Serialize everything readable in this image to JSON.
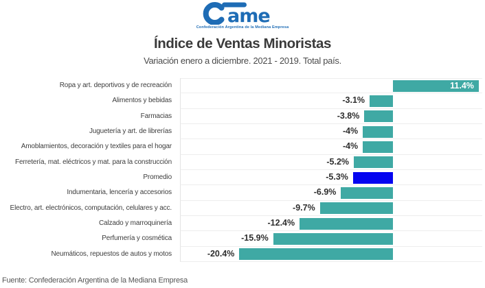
{
  "logo": {
    "name": "Came",
    "tagline": "Confederación Argentina de la Mediana Empresa",
    "color": "#1e6cb5"
  },
  "header": {
    "title": "Índice de Ventas Minoristas",
    "subtitle": "Variación enero a diciembre. 2021 - 2019. Total país."
  },
  "footer": {
    "source": "Fuente: Confederación Argentina de la Mediana Empresa"
  },
  "chart_data": {
    "type": "bar",
    "orientation": "horizontal",
    "title": "Índice de Ventas Minoristas",
    "subtitle": "Variación enero a diciembre. 2021 - 2019. Total país.",
    "categories": [
      "Ropa y art. deportivos y de recreación",
      "Alimentos y bebidas",
      "Farmacias",
      "Juguetería y art. de librerías",
      "Amoblamientos, decoración y textiles para el hogar",
      "Ferretería, mat. eléctricos y mat. para la construcción",
      "Promedio",
      "Indumentaria, lencería y accesorios",
      "Electro, art. electrónicos, computación, celulares y acc.",
      "Calzado y marroquinería",
      "Perfumería y cosmética",
      "Neumáticos, repuestos de autos y motos"
    ],
    "values": [
      11.4,
      -3.1,
      -3.8,
      -4,
      -4,
      -5.2,
      -5.3,
      -6.9,
      -9.7,
      -12.4,
      -15.9,
      -20.4
    ],
    "labels": [
      "11.4%",
      "-3.1%",
      "-3.8%",
      "-4%",
      "-4%",
      "-5.2%",
      "-5.3%",
      "-6.9%",
      "-9.7%",
      "-12.4%",
      "-15.9%",
      "-20.4%"
    ],
    "highlight_category": "Promedio",
    "bar_color": "#3fa9a4",
    "highlight_color": "#0505f0",
    "value_label_color": "#2e2e2e",
    "positive_label_color": "#ffffff",
    "xlim": [
      -28.2,
      12
    ],
    "grid": "horizontal row separators, light gray",
    "legend": "none",
    "value_label_position": "outside-left for negative bars, inside-right for positive bars"
  }
}
